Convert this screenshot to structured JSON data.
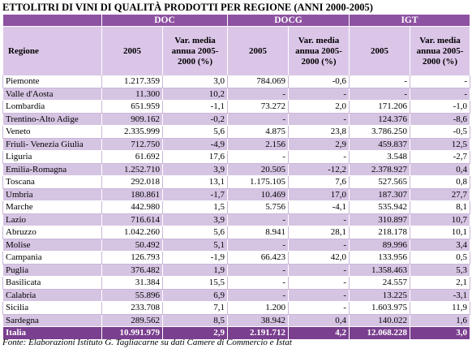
{
  "title": "ETTOLITRI DI VINI DI QUALITÀ PRODOTTI PER REGIONE  (ANNI 2000-2005)",
  "groups": [
    "DOC",
    "DOCG",
    "IGT"
  ],
  "subheaders": {
    "region": "Regione",
    "year": "2005",
    "var": "Var. media annua 2005-2000 (%)"
  },
  "rows": [
    [
      "Piemonte",
      "1.217.359",
      "3,0",
      "784.069",
      "-0,6",
      "-",
      "-"
    ],
    [
      "Valle d'Aosta",
      "11.300",
      "10,2",
      "-",
      "-",
      "-",
      "-"
    ],
    [
      "Lombardia",
      "651.959",
      "-1,1",
      "73.272",
      "2,0",
      "171.206",
      "-1,0"
    ],
    [
      "Trentino-Alto Adige",
      "909.162",
      "-0,2",
      "-",
      "-",
      "124.376",
      "-8,6"
    ],
    [
      "Veneto",
      "2.335.999",
      "5,6",
      "4.875",
      "23,8",
      "3.786.250",
      "-0,5"
    ],
    [
      "Friuli- Venezia Giulia",
      "712.750",
      "-4,9",
      "2.156",
      "2,9",
      "459.837",
      "12,5"
    ],
    [
      "Liguria",
      "61.692",
      "17,6",
      "-",
      "-",
      "3.548",
      "-2,7"
    ],
    [
      "Emilia-Romagna",
      "1.252.710",
      "3,9",
      "20.505",
      "-12,2",
      "2.378.927",
      "0,4"
    ],
    [
      "Toscana",
      "292.018",
      "13,1",
      "1.175.105",
      "7,6",
      "527.565",
      "0,8"
    ],
    [
      "Umbria",
      "180.861",
      "-1,7",
      "10.469",
      "17,0",
      "187.307",
      "27,7"
    ],
    [
      "Marche",
      "442.980",
      "1,5",
      "5.756",
      "-4,1",
      "535.942",
      "8,1"
    ],
    [
      "Lazio",
      "716.614",
      "3,9",
      "-",
      "-",
      "310.897",
      "10,7"
    ],
    [
      "Abruzzo",
      "1.042.260",
      "5,6",
      "8.941",
      "28,1",
      "218.178",
      "10,1"
    ],
    [
      "Molise",
      "50.492",
      "5,1",
      "-",
      "-",
      "89.996",
      "3,4"
    ],
    [
      "Campania",
      "126.793",
      "-1,9",
      "66.423",
      "42,0",
      "133.956",
      "0,5"
    ],
    [
      "Puglia",
      "376.482",
      "1,9",
      "-",
      "-",
      "1.358.463",
      "5,3"
    ],
    [
      "Basilicata",
      "31.384",
      "15,5",
      "-",
      "-",
      "24.557",
      "2,1"
    ],
    [
      "Calabria",
      "55.896",
      "6,9",
      "-",
      "-",
      "13.225",
      "-3,1"
    ],
    [
      "Sicilia",
      "233.708",
      "7,1",
      "1.200",
      "-",
      "1.603.975",
      "11,9"
    ],
    [
      "Sardegna",
      "289.562",
      "8,5",
      "38.942",
      "0,4",
      "140.022",
      "1,6"
    ]
  ],
  "total": [
    "Italia",
    "10.991.979",
    "2,9",
    "2.191.712",
    "4,2",
    "12.068.228",
    "3,0"
  ],
  "footnote": "Fonte: Elaborazioni Istituto G. Tagliacarne su dati Camere di Commercio e Istat",
  "colors": {
    "header_dark": "#8e52a2",
    "header_light": "#dbc6e8",
    "row_alt": "#d6c4e3",
    "total_row": "#7a3f8e"
  }
}
